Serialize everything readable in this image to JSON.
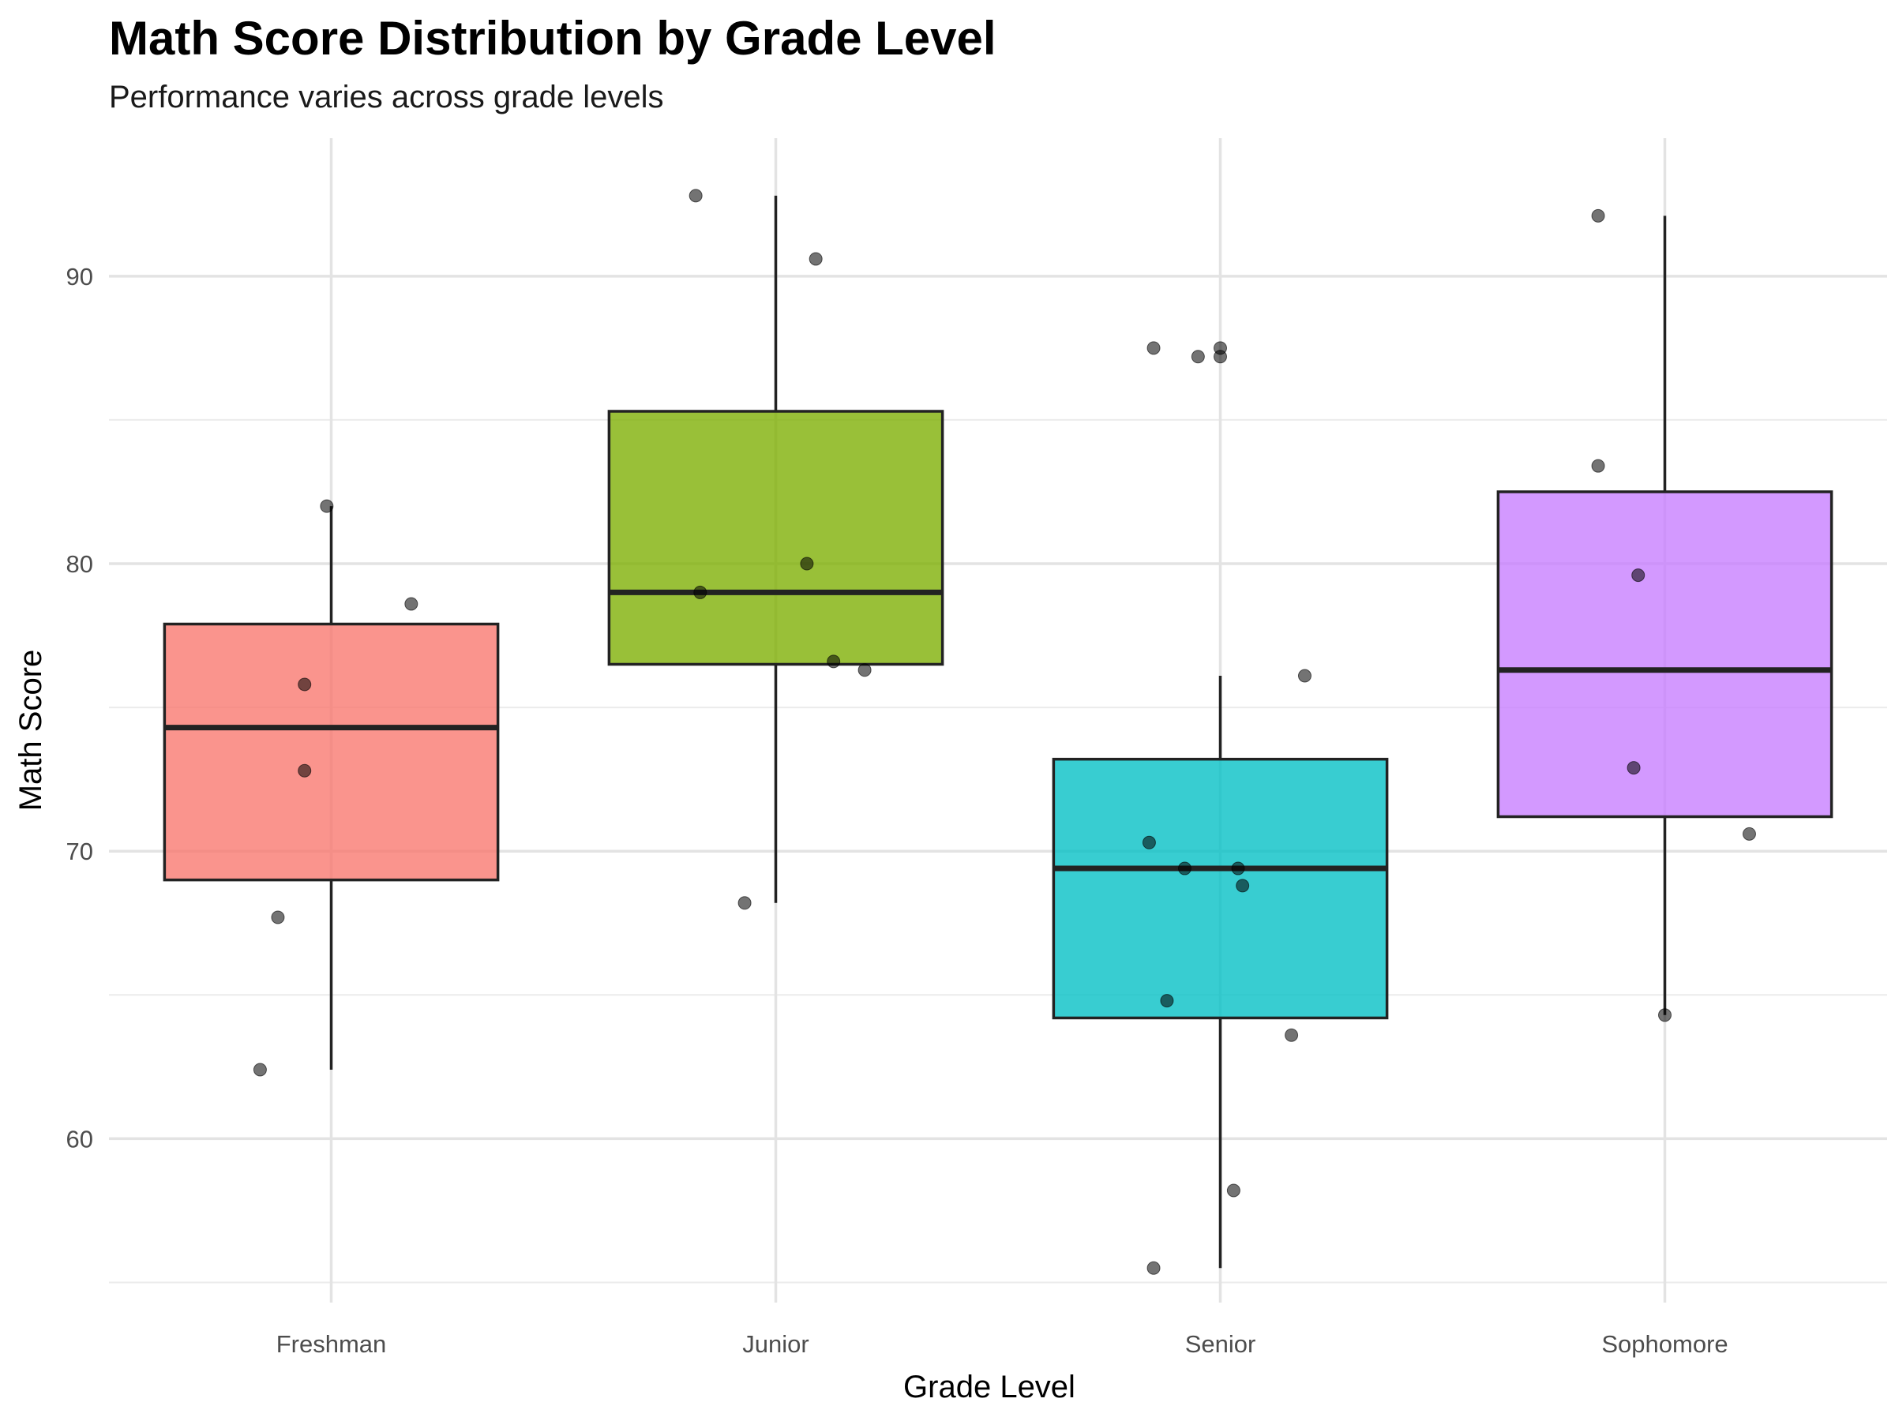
{
  "chart_data": {
    "type": "box",
    "title": "Math Score Distribution by Grade Level",
    "subtitle": "Performance varies across grade levels",
    "xlabel": "Grade Level",
    "ylabel": "Math Score",
    "ylim": [
      54.3,
      94.8
    ],
    "yticks": [
      60,
      70,
      80,
      90
    ],
    "grid": true,
    "legend": "none",
    "categories": [
      "Freshman",
      "Junior",
      "Senior",
      "Sophomore"
    ],
    "boxes": [
      {
        "category": "Freshman",
        "color": "#F8766D",
        "min": 62.4,
        "q1": 69.0,
        "median": 74.3,
        "q3": 77.9,
        "max": 82.0
      },
      {
        "category": "Junior",
        "color": "#7CAE00",
        "min": 68.2,
        "q1": 76.5,
        "median": 79.0,
        "q3": 85.3,
        "max": 92.8
      },
      {
        "category": "Senior",
        "color": "#00BFC4",
        "min": 55.5,
        "q1": 64.2,
        "median": 69.4,
        "q3": 73.2,
        "max": 76.1
      },
      {
        "category": "Sophomore",
        "color": "#C77CFF",
        "min": 64.3,
        "q1": 71.2,
        "median": 76.3,
        "q3": 82.5,
        "max": 92.1
      }
    ],
    "points": [
      {
        "category": "Freshman",
        "jitter": -0.16,
        "y": 62.4
      },
      {
        "category": "Freshman",
        "jitter": -0.12,
        "y": 67.7
      },
      {
        "category": "Freshman",
        "jitter": -0.06,
        "y": 72.8
      },
      {
        "category": "Freshman",
        "jitter": -0.06,
        "y": 75.8
      },
      {
        "category": "Freshman",
        "jitter": 0.18,
        "y": 78.6
      },
      {
        "category": "Freshman",
        "jitter": -0.01,
        "y": 82.0
      },
      {
        "category": "Junior",
        "jitter": -0.07,
        "y": 68.2
      },
      {
        "category": "Junior",
        "jitter": 0.2,
        "y": 76.3
      },
      {
        "category": "Junior",
        "jitter": 0.13,
        "y": 76.6
      },
      {
        "category": "Junior",
        "jitter": -0.17,
        "y": 79.0
      },
      {
        "category": "Junior",
        "jitter": 0.07,
        "y": 80.0
      },
      {
        "category": "Junior",
        "jitter": 0.09,
        "y": 90.6
      },
      {
        "category": "Junior",
        "jitter": -0.18,
        "y": 92.8
      },
      {
        "category": "Senior",
        "jitter": -0.15,
        "y": 55.5
      },
      {
        "category": "Senior",
        "jitter": 0.03,
        "y": 58.2
      },
      {
        "category": "Senior",
        "jitter": 0.16,
        "y": 63.6
      },
      {
        "category": "Senior",
        "jitter": -0.12,
        "y": 64.8
      },
      {
        "category": "Senior",
        "jitter": 0.05,
        "y": 68.8
      },
      {
        "category": "Senior",
        "jitter": -0.08,
        "y": 69.4
      },
      {
        "category": "Senior",
        "jitter": 0.04,
        "y": 69.4
      },
      {
        "category": "Senior",
        "jitter": -0.16,
        "y": 70.3
      },
      {
        "category": "Senior",
        "jitter": 0.19,
        "y": 76.1
      },
      {
        "category": "Senior",
        "jitter": -0.05,
        "y": 87.2
      },
      {
        "category": "Senior",
        "jitter": 0.0,
        "y": 87.2
      },
      {
        "category": "Senior",
        "jitter": -0.15,
        "y": 87.5
      },
      {
        "category": "Senior",
        "jitter": 0.0,
        "y": 87.5
      },
      {
        "category": "Sophomore",
        "jitter": 0.0,
        "y": 64.3
      },
      {
        "category": "Sophomore",
        "jitter": 0.19,
        "y": 70.6
      },
      {
        "category": "Sophomore",
        "jitter": -0.07,
        "y": 72.9
      },
      {
        "category": "Sophomore",
        "jitter": -0.06,
        "y": 79.6
      },
      {
        "category": "Sophomore",
        "jitter": -0.15,
        "y": 83.4
      },
      {
        "category": "Sophomore",
        "jitter": -0.15,
        "y": 92.1
      }
    ]
  }
}
